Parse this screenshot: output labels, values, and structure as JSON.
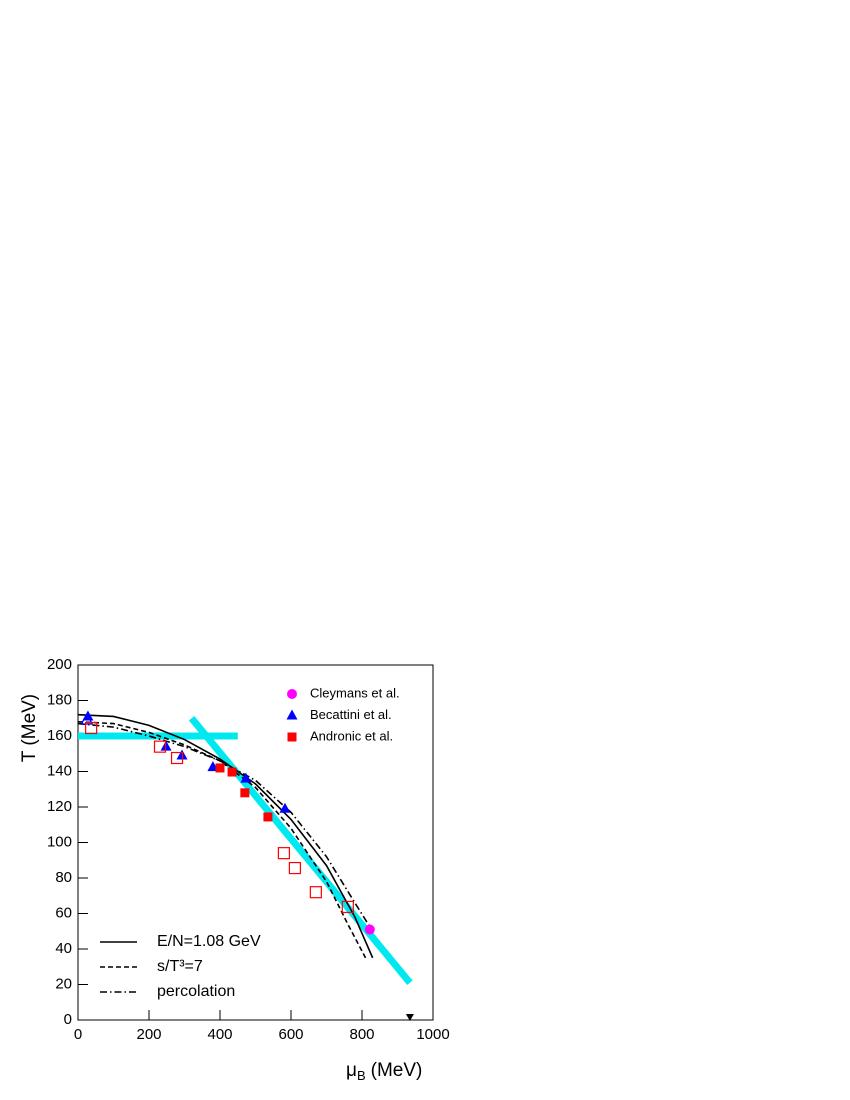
{
  "chart_data": {
    "type": "scatter",
    "ylabel": "T (MeV)",
    "xlabel": "μ",
    "xlabel_sub": "B",
    "xlabel_unit": "(MeV)",
    "xlim": [
      0,
      1000
    ],
    "xticks": [
      0,
      200,
      400,
      600,
      800,
      1000
    ],
    "ylim": [
      0,
      200
    ],
    "yticks": [
      0,
      20,
      40,
      60,
      80,
      100,
      120,
      140,
      160,
      180,
      200
    ],
    "marker_legend_loc": "upper right",
    "line_legend_loc": "lower left",
    "series": [
      {
        "kind": "band",
        "color": "#00e8f0",
        "x": [
          0,
          450
        ],
        "values": [
          160,
          160
        ]
      },
      {
        "kind": "band",
        "color": "#00e8f0",
        "x": [
          320,
          935
        ],
        "values": [
          170,
          21
        ]
      },
      {
        "name": "E/N=1.08 GeV",
        "kind": "line",
        "dash": "solid",
        "color": "#000000",
        "x": [
          0,
          100,
          200,
          300,
          400,
          500,
          600,
          700,
          780,
          830
        ],
        "values": [
          172,
          171,
          166,
          158,
          147,
          133,
          113,
          87,
          58,
          35
        ]
      },
      {
        "name": "s/T³=7",
        "kind": "line",
        "dash": "dashed",
        "color": "#000000",
        "x": [
          0,
          100,
          200,
          300,
          400,
          500,
          600,
          700,
          760,
          810
        ],
        "values": [
          168,
          167,
          162,
          155,
          146,
          131,
          108,
          78,
          54,
          35
        ]
      },
      {
        "name": "percolation",
        "kind": "line",
        "dash": "dashdot",
        "color": "#000000",
        "x": [
          0,
          100,
          200,
          300,
          400,
          500,
          600,
          700,
          780,
          830
        ],
        "values": [
          167,
          165,
          160,
          154,
          146,
          135,
          117,
          92,
          66,
          50
        ]
      },
      {
        "name": "Cleymans et al.",
        "kind": "scatter",
        "marker": "circle",
        "color": "#ff00ff",
        "x": [
          822
        ],
        "values": [
          51
        ],
        "filled": [
          true
        ]
      },
      {
        "name": "Becattini et al.",
        "kind": "scatter",
        "marker": "triangle",
        "color": "#0000ff",
        "x": [
          25,
          28,
          248,
          293,
          380,
          473,
          583
        ],
        "values": [
          169,
          171,
          154,
          149,
          142.5,
          136,
          119
        ],
        "filled": [
          false,
          true,
          true,
          true,
          true,
          true,
          true
        ]
      },
      {
        "name": "Andronic et al.",
        "kind": "scatter",
        "marker": "square",
        "color": "#ff0000",
        "x": [
          37,
          231,
          279,
          400,
          434,
          470,
          535,
          580,
          611,
          670,
          760
        ],
        "values": [
          164.5,
          154,
          147.6,
          142,
          139.7,
          128,
          114.4,
          94,
          85.6,
          72,
          63.7
        ],
        "filled": [
          false,
          false,
          false,
          true,
          true,
          true,
          true,
          false,
          false,
          false,
          false
        ]
      },
      {
        "kind": "scatter",
        "marker": "triangle-down",
        "color": "#000000",
        "x": [
          935
        ],
        "values": [
          1.7
        ],
        "filled": [
          true
        ]
      }
    ]
  }
}
